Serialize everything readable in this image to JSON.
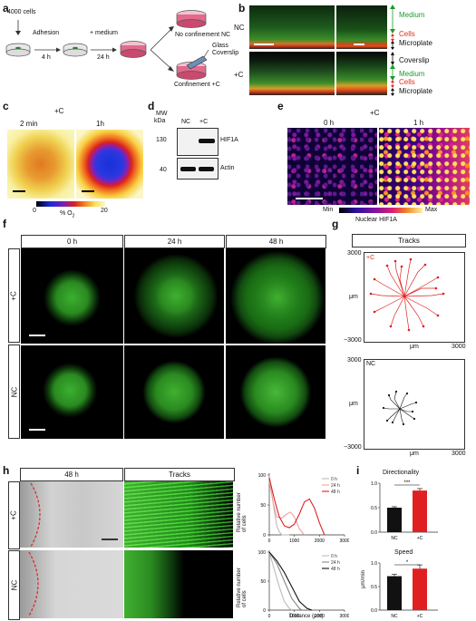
{
  "panel_labels": {
    "a": "a",
    "b": "b",
    "c": "c",
    "d": "d",
    "e": "e",
    "f": "f",
    "g": "g",
    "h": "h",
    "i": "i"
  },
  "panel_a": {
    "cells": "4000 cells",
    "adhesion": "Adhesion",
    "t4": "4 h",
    "medium": "+ medium",
    "t24": "24 h",
    "no_conf": "No confinement NC",
    "glass1": "Glass",
    "glass2": "Coverslip",
    "conf": "Confinement +C"
  },
  "panel_b": {
    "nc": "NC",
    "c": "+C",
    "medium": "Medium",
    "cells": "Cells",
    "microplate": "Microplate",
    "coverslip": "Coverslip"
  },
  "panel_c": {
    "title": "+C",
    "t1": "2 min",
    "t2": "1h",
    "scale_min": "0",
    "scale_max": "20",
    "scale_label": "% O",
    "scale_sub": "2"
  },
  "panel_d": {
    "mw1": "MW",
    "mw2": "kDa",
    "nc": "NC",
    "c": "+C",
    "m130": "130",
    "m40": "40",
    "band1": "HIF1A",
    "band2": "Actin"
  },
  "panel_e": {
    "title": "+C",
    "t0": "0 h",
    "t1": "1 h",
    "min": "Min",
    "max": "Max",
    "label": "Nuclear HIF1A"
  },
  "panel_f": {
    "t0": "0 h",
    "t24": "24 h",
    "t48": "48 h",
    "row1": "+C",
    "row2": "NC"
  },
  "panel_g": {
    "title": "Tracks",
    "c_label": "+C",
    "nc_label": "NC",
    "y_top": "3000",
    "y_bot": "−3000",
    "x_right": "3000",
    "unit": "μm"
  },
  "panel_h": {
    "t48": "48 h",
    "tracks": "Tracks",
    "row1": "+C",
    "row2": "NC",
    "ylabel1": "Relative number",
    "ylabel2": "of cells",
    "xlabel": "Distance (μm)",
    "legend": [
      "0 h",
      "24 h",
      "48 h"
    ]
  },
  "panel_i": {
    "dir_title": "Directionality",
    "speed_title": "Speed",
    "speed_unit": "μm/min",
    "sig1": "***",
    "sig2": "*"
  },
  "chart_data": [
    {
      "type": "line",
      "title": "",
      "xlabel": "",
      "ylabel": "Relative number of cells",
      "x_ticks": [
        "0",
        "1000",
        "2000",
        "3000"
      ],
      "y_ticks": [
        "0",
        "50",
        "100"
      ],
      "xlim": [
        0,
        3000
      ],
      "ylim": [
        0,
        100
      ],
      "series": [
        {
          "name": "0 h",
          "color": "#bbbbbb",
          "x": [
            0,
            100,
            200,
            300,
            400,
            500,
            600,
            800
          ],
          "y": [
            100,
            70,
            40,
            15,
            5,
            0,
            0,
            0
          ]
        },
        {
          "name": "24 h",
          "color": "#f2a0a0",
          "x": [
            0,
            150,
            300,
            500,
            700,
            850,
            1000,
            1200,
            1400
          ],
          "y": [
            90,
            55,
            30,
            28,
            35,
            38,
            30,
            10,
            0
          ]
        },
        {
          "name": "48 h",
          "color": "#e02020",
          "x": [
            0,
            200,
            400,
            600,
            800,
            1000,
            1200,
            1400,
            1600,
            1800,
            2000,
            2200
          ],
          "y": [
            95,
            60,
            30,
            15,
            12,
            18,
            35,
            55,
            60,
            45,
            20,
            0
          ]
        }
      ]
    },
    {
      "type": "line",
      "title": "",
      "xlabel": "Distance (μm)",
      "ylabel": "Relative number of cells",
      "x_ticks": [
        "0",
        "1000",
        "2000",
        "3000"
      ],
      "y_ticks": [
        "0",
        "50",
        "100"
      ],
      "xlim": [
        0,
        3000
      ],
      "ylim": [
        0,
        100
      ],
      "series": [
        {
          "name": "0 h",
          "color": "#bbbbbb",
          "x": [
            0,
            200,
            400,
            600,
            800,
            900
          ],
          "y": [
            100,
            70,
            40,
            15,
            3,
            0
          ]
        },
        {
          "name": "24 h",
          "color": "#888888",
          "x": [
            0,
            300,
            600,
            900,
            1200,
            1300
          ],
          "y": [
            100,
            80,
            50,
            20,
            3,
            0
          ]
        },
        {
          "name": "48 h",
          "color": "#111111",
          "x": [
            0,
            300,
            600,
            900,
            1200,
            1500,
            1700
          ],
          "y": [
            100,
            85,
            65,
            40,
            15,
            3,
            0
          ]
        }
      ]
    },
    {
      "type": "bar",
      "title": "Directionality",
      "categories": [
        "NC",
        "+C"
      ],
      "values": [
        0.5,
        0.85
      ],
      "errors": [
        0.02,
        0.04
      ],
      "colors": [
        "#111111",
        "#e02020"
      ],
      "y_ticks": [
        "0.0",
        "0.5",
        "1.0"
      ],
      "ylim": [
        0,
        1.0
      ],
      "significance": "***"
    },
    {
      "type": "bar",
      "title": "Speed",
      "ylabel": "μm/min",
      "categories": [
        "NC",
        "+C"
      ],
      "values": [
        0.72,
        0.88
      ],
      "errors": [
        0.04,
        0.08
      ],
      "colors": [
        "#111111",
        "#e02020"
      ],
      "y_ticks": [
        "0.0",
        "0.5",
        "1.0"
      ],
      "ylim": [
        0,
        1.0
      ],
      "significance": "*"
    }
  ]
}
